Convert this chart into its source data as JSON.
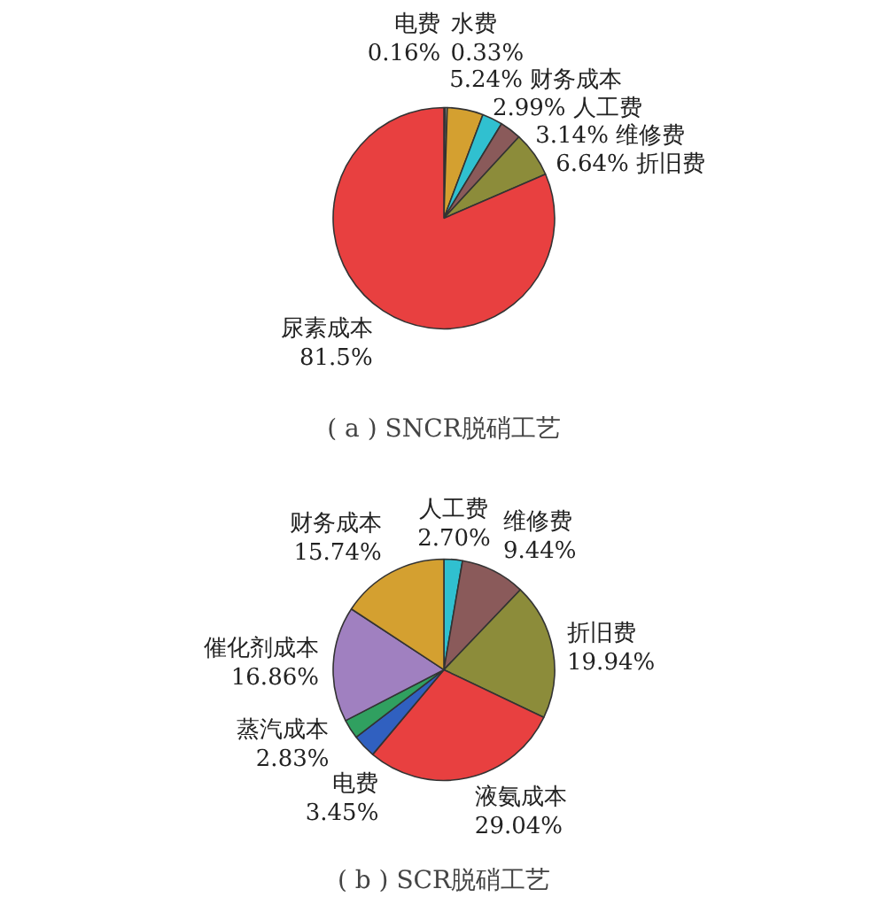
{
  "chart_data": [
    {
      "type": "pie",
      "title": "( a ) SNCR脱硝工艺",
      "categories": [
        "电费",
        "水费",
        "财务成本",
        "人工费",
        "维修费",
        "折旧费",
        "尿素成本"
      ],
      "values": [
        0.16,
        0.33,
        5.24,
        2.99,
        3.14,
        6.64,
        81.5
      ],
      "value_labels": [
        "0.16%",
        "0.33%",
        "5.24%",
        "2.99%",
        "3.14%",
        "6.64%",
        "81.5%"
      ],
      "colors": [
        "#3a7a3a",
        "#8a8a8a",
        "#d4a030",
        "#30c0d0",
        "#8a5a5a",
        "#8c8c3a",
        "#e84040"
      ]
    },
    {
      "type": "pie",
      "title": "( b ) SCR脱硝工艺",
      "categories": [
        "人工费",
        "维修费",
        "折旧费",
        "液氨成本",
        "电费",
        "蒸汽成本",
        "催化剂成本",
        "财务成本"
      ],
      "values": [
        2.7,
        9.44,
        19.94,
        29.04,
        3.45,
        2.83,
        16.86,
        15.74
      ],
      "value_labels": [
        "2.70%",
        "9.44%",
        "19.94%",
        "29.04%",
        "3.45%",
        "2.83%",
        "16.86%",
        "15.74%"
      ],
      "colors": [
        "#30c0d0",
        "#8a5a5a",
        "#8c8c3a",
        "#e84040",
        "#3060c0",
        "#30a060",
        "#a080c0",
        "#d4a030"
      ]
    }
  ]
}
